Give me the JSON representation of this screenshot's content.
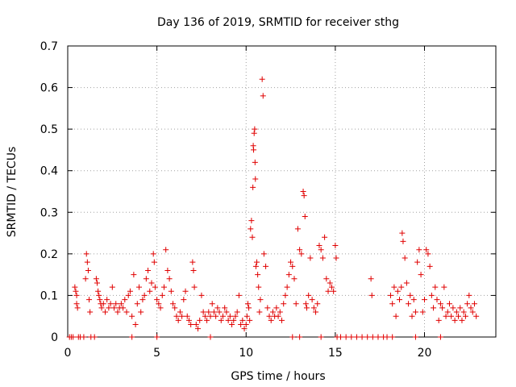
{
  "chart_data": {
    "type": "scatter",
    "title": "Day 136 of 2019, SRMTID for receiver sthg",
    "xlabel": "GPS time / hours",
    "ylabel": "SRMTID / TECUs",
    "xlim": [
      0,
      24
    ],
    "ylim": [
      0,
      0.7
    ],
    "xticks": [
      0,
      5,
      10,
      15,
      20
    ],
    "xtick_labels": [
      "0",
      "5",
      "10",
      "15",
      "20"
    ],
    "yticks": [
      0,
      0.1,
      0.2,
      0.3,
      0.4,
      0.5,
      0.6,
      0.7
    ],
    "ytick_labels": [
      "0",
      "0.1",
      "0.2",
      "0.3",
      "0.4",
      "0.5",
      "0.6",
      "0.7"
    ],
    "grid": true,
    "marker": "+",
    "color": "#e00000",
    "series": [
      {
        "name": "SRMTID",
        "points": [
          [
            0.1,
            0
          ],
          [
            0.2,
            0
          ],
          [
            0.3,
            0
          ],
          [
            0.4,
            0.12
          ],
          [
            0.45,
            0.11
          ],
          [
            0.5,
            0.08
          ],
          [
            0.55,
            0.07
          ],
          [
            0.5,
            0.1
          ],
          [
            0.6,
            0
          ],
          [
            0.7,
            0
          ],
          [
            0.9,
            0
          ],
          [
            1.0,
            0.14
          ],
          [
            1.05,
            0.2
          ],
          [
            1.1,
            0.18
          ],
          [
            1.15,
            0.16
          ],
          [
            1.2,
            0.09
          ],
          [
            1.25,
            0.06
          ],
          [
            1.3,
            0
          ],
          [
            1.5,
            0
          ],
          [
            1.6,
            0.14
          ],
          [
            1.65,
            0.13
          ],
          [
            1.7,
            0.11
          ],
          [
            1.75,
            0.1
          ],
          [
            1.8,
            0.09
          ],
          [
            1.85,
            0.08
          ],
          [
            1.9,
            0.07
          ],
          [
            2.0,
            0.08
          ],
          [
            2.1,
            0.06
          ],
          [
            2.2,
            0.09
          ],
          [
            2.3,
            0.07
          ],
          [
            2.4,
            0.08
          ],
          [
            2.5,
            0.12
          ],
          [
            2.6,
            0.07
          ],
          [
            2.7,
            0.08
          ],
          [
            2.8,
            0.06
          ],
          [
            2.9,
            0.07
          ],
          [
            3.0,
            0.08
          ],
          [
            3.1,
            0.07
          ],
          [
            3.2,
            0.09
          ],
          [
            3.3,
            0.06
          ],
          [
            3.4,
            0.1
          ],
          [
            3.5,
            0.11
          ],
          [
            3.6,
            0.05
          ],
          [
            3.7,
            0.15
          ],
          [
            3.8,
            0.03
          ],
          [
            3.9,
            0.08
          ],
          [
            4.0,
            0.12
          ],
          [
            4.1,
            0.06
          ],
          [
            4.2,
            0.09
          ],
          [
            4.3,
            0.1
          ],
          [
            4.4,
            0.14
          ],
          [
            4.5,
            0.16
          ],
          [
            4.6,
            0.11
          ],
          [
            4.7,
            0.13
          ],
          [
            4.8,
            0.2
          ],
          [
            4.85,
            0.18
          ],
          [
            4.9,
            0.12
          ],
          [
            5.0,
            0.09
          ],
          [
            5.1,
            0.08
          ],
          [
            5.2,
            0.07
          ],
          [
            5.3,
            0.1
          ],
          [
            5.4,
            0.12
          ],
          [
            5.5,
            0.21
          ],
          [
            5.6,
            0.16
          ],
          [
            5.7,
            0.14
          ],
          [
            5.8,
            0.11
          ],
          [
            5.9,
            0.08
          ],
          [
            6.0,
            0.07
          ],
          [
            6.1,
            0.05
          ],
          [
            6.2,
            0.04
          ],
          [
            6.3,
            0.06
          ],
          [
            6.4,
            0.05
          ],
          [
            6.5,
            0.09
          ],
          [
            6.6,
            0.11
          ],
          [
            6.7,
            0.05
          ],
          [
            6.8,
            0.04
          ],
          [
            6.9,
            0.03
          ],
          [
            7.0,
            0.18
          ],
          [
            7.05,
            0.16
          ],
          [
            7.1,
            0.12
          ],
          [
            7.2,
            0.03
          ],
          [
            7.3,
            0.02
          ],
          [
            7.4,
            0.04
          ],
          [
            7.5,
            0.1
          ],
          [
            7.6,
            0.06
          ],
          [
            7.7,
            0.05
          ],
          [
            7.8,
            0.04
          ],
          [
            7.9,
            0.06
          ],
          [
            8.0,
            0.05
          ],
          [
            8.1,
            0.08
          ],
          [
            8.2,
            0.06
          ],
          [
            8.3,
            0.05
          ],
          [
            8.4,
            0.07
          ],
          [
            8.5,
            0.06
          ],
          [
            8.6,
            0.04
          ],
          [
            8.7,
            0.05
          ],
          [
            8.8,
            0.07
          ],
          [
            8.9,
            0.06
          ],
          [
            9.0,
            0.04
          ],
          [
            9.1,
            0.05
          ],
          [
            9.2,
            0.03
          ],
          [
            9.3,
            0.04
          ],
          [
            9.4,
            0.05
          ],
          [
            9.5,
            0.06
          ],
          [
            9.6,
            0.1
          ],
          [
            9.7,
            0.03
          ],
          [
            9.8,
            0.04
          ],
          [
            9.9,
            0.02
          ],
          [
            10.0,
            0.03
          ],
          [
            10.05,
            0.05
          ],
          [
            10.1,
            0.08
          ],
          [
            10.15,
            0.07
          ],
          [
            10.2,
            0.04
          ],
          [
            10.25,
            0.26
          ],
          [
            10.3,
            0.28
          ],
          [
            10.35,
            0.24
          ],
          [
            10.38,
            0.36
          ],
          [
            10.4,
            0.46
          ],
          [
            10.42,
            0.45
          ],
          [
            10.45,
            0.49
          ],
          [
            10.48,
            0.5
          ],
          [
            10.5,
            0.42
          ],
          [
            10.52,
            0.38
          ],
          [
            10.55,
            0.17
          ],
          [
            10.6,
            0.18
          ],
          [
            10.65,
            0.15
          ],
          [
            10.7,
            0.12
          ],
          [
            10.75,
            0.06
          ],
          [
            10.8,
            0.09
          ],
          [
            10.9,
            0.62
          ],
          [
            10.95,
            0.58
          ],
          [
            11.0,
            0.2
          ],
          [
            11.1,
            0.17
          ],
          [
            11.2,
            0.07
          ],
          [
            11.3,
            0.05
          ],
          [
            11.4,
            0.04
          ],
          [
            11.5,
            0.06
          ],
          [
            11.6,
            0.05
          ],
          [
            11.7,
            0.07
          ],
          [
            11.8,
            0.05
          ],
          [
            11.9,
            0.06
          ],
          [
            12.0,
            0.04
          ],
          [
            12.1,
            0.08
          ],
          [
            12.2,
            0.1
          ],
          [
            12.3,
            0.12
          ],
          [
            12.4,
            0.15
          ],
          [
            12.5,
            0.18
          ],
          [
            12.6,
            0.17
          ],
          [
            12.7,
            0.14
          ],
          [
            12.8,
            0.08
          ],
          [
            12.9,
            0.26
          ],
          [
            13.0,
            0.21
          ],
          [
            13.1,
            0.2
          ],
          [
            13.2,
            0.35
          ],
          [
            13.25,
            0.34
          ],
          [
            13.3,
            0.29
          ],
          [
            13.35,
            0.08
          ],
          [
            13.4,
            0.07
          ],
          [
            13.5,
            0.1
          ],
          [
            13.6,
            0.19
          ],
          [
            13.7,
            0.09
          ],
          [
            13.8,
            0.07
          ],
          [
            13.9,
            0.06
          ],
          [
            14.0,
            0.08
          ],
          [
            14.1,
            0.22
          ],
          [
            14.2,
            0.21
          ],
          [
            14.3,
            0.19
          ],
          [
            14.4,
            0.24
          ],
          [
            14.5,
            0.14
          ],
          [
            14.6,
            0.11
          ],
          [
            14.7,
            0.13
          ],
          [
            14.8,
            0.12
          ],
          [
            14.9,
            0.11
          ],
          [
            15.0,
            0.22
          ],
          [
            15.05,
            0.19
          ],
          [
            15.1,
            0
          ],
          [
            15.3,
            0
          ],
          [
            15.6,
            0
          ],
          [
            15.9,
            0
          ],
          [
            16.2,
            0
          ],
          [
            16.5,
            0
          ],
          [
            16.8,
            0
          ],
          [
            17.1,
            0
          ],
          [
            17.4,
            0
          ],
          [
            17.7,
            0
          ],
          [
            17.9,
            0
          ],
          [
            17.0,
            0.14
          ],
          [
            17.05,
            0.1
          ],
          [
            18.1,
            0.1
          ],
          [
            18.2,
            0.08
          ],
          [
            18.3,
            0.12
          ],
          [
            18.4,
            0.05
          ],
          [
            18.5,
            0.11
          ],
          [
            18.6,
            0.09
          ],
          [
            18.7,
            0.12
          ],
          [
            18.75,
            0.25
          ],
          [
            18.8,
            0.23
          ],
          [
            18.9,
            0.19
          ],
          [
            19.0,
            0.13
          ],
          [
            19.1,
            0.08
          ],
          [
            19.2,
            0.1
          ],
          [
            19.3,
            0.05
          ],
          [
            19.4,
            0.09
          ],
          [
            19.5,
            0.06
          ],
          [
            19.6,
            0.18
          ],
          [
            19.7,
            0.21
          ],
          [
            19.8,
            0.15
          ],
          [
            19.9,
            0.06
          ],
          [
            20.0,
            0.09
          ],
          [
            20.1,
            0.21
          ],
          [
            20.2,
            0.2
          ],
          [
            20.3,
            0.17
          ],
          [
            20.4,
            0.1
          ],
          [
            20.5,
            0.07
          ],
          [
            20.6,
            0.12
          ],
          [
            20.7,
            0.09
          ],
          [
            20.8,
            0.04
          ],
          [
            20.9,
            0.08
          ],
          [
            21.0,
            0.07
          ],
          [
            21.1,
            0.12
          ],
          [
            21.2,
            0.05
          ],
          [
            21.3,
            0.06
          ],
          [
            21.4,
            0.08
          ],
          [
            21.5,
            0.05
          ],
          [
            21.6,
            0.07
          ],
          [
            21.7,
            0.04
          ],
          [
            21.8,
            0.06
          ],
          [
            21.9,
            0.05
          ],
          [
            22.0,
            0.07
          ],
          [
            22.1,
            0.04
          ],
          [
            22.2,
            0.06
          ],
          [
            22.3,
            0.05
          ],
          [
            22.4,
            0.08
          ],
          [
            22.5,
            0.1
          ],
          [
            22.6,
            0.07
          ],
          [
            22.7,
            0.06
          ],
          [
            22.8,
            0.08
          ],
          [
            22.9,
            0.05
          ],
          [
            18.2,
            0
          ],
          [
            19.5,
            0
          ],
          [
            20.9,
            0
          ],
          [
            3.6,
            0
          ],
          [
            5.0,
            0
          ],
          [
            8.0,
            0
          ],
          [
            12.6,
            0
          ],
          [
            13.0,
            0
          ],
          [
            14.2,
            0
          ]
        ]
      }
    ]
  }
}
